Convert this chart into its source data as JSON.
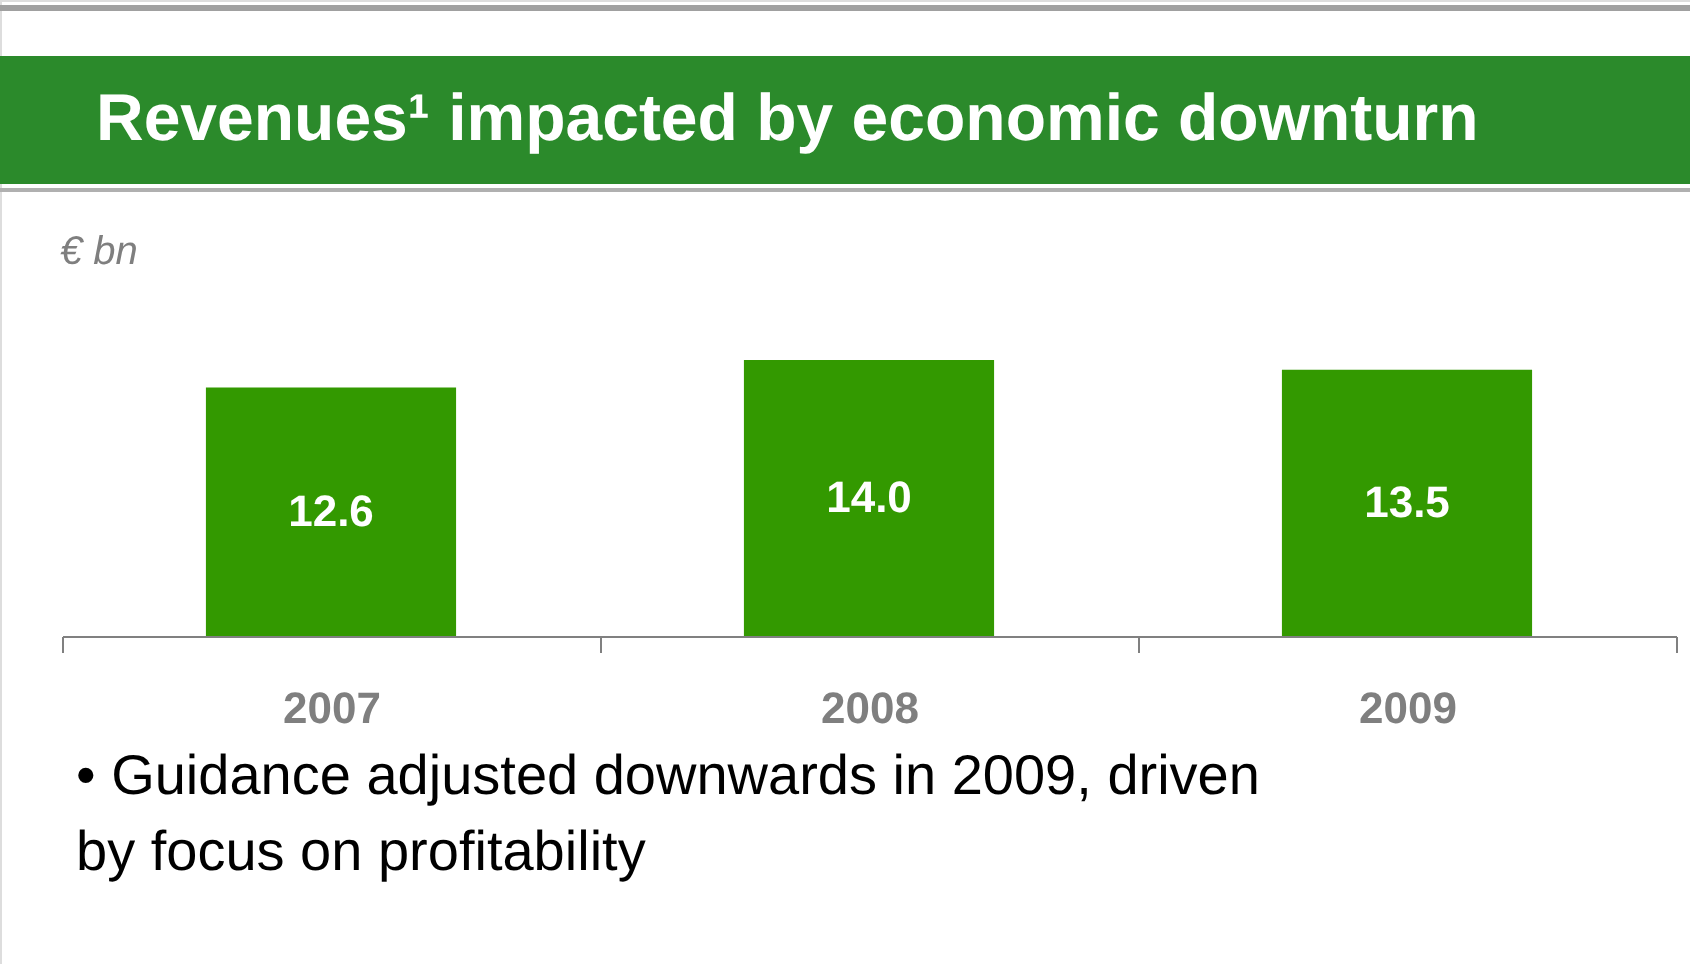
{
  "chart_data": {
    "type": "bar",
    "title": "Revenues¹ impacted by economic downturn",
    "ylabel": "€ bn",
    "categories": [
      "2007",
      "2008",
      "2009"
    ],
    "values": [
      12.6,
      14.0,
      13.5
    ],
    "color": "#339900",
    "value_labels": [
      "12.6",
      "14.0",
      "13.5"
    ],
    "grid": false,
    "annotations": [
      "• Guidance adjusted downwards in 2009, driven by focus on profitability"
    ]
  }
}
